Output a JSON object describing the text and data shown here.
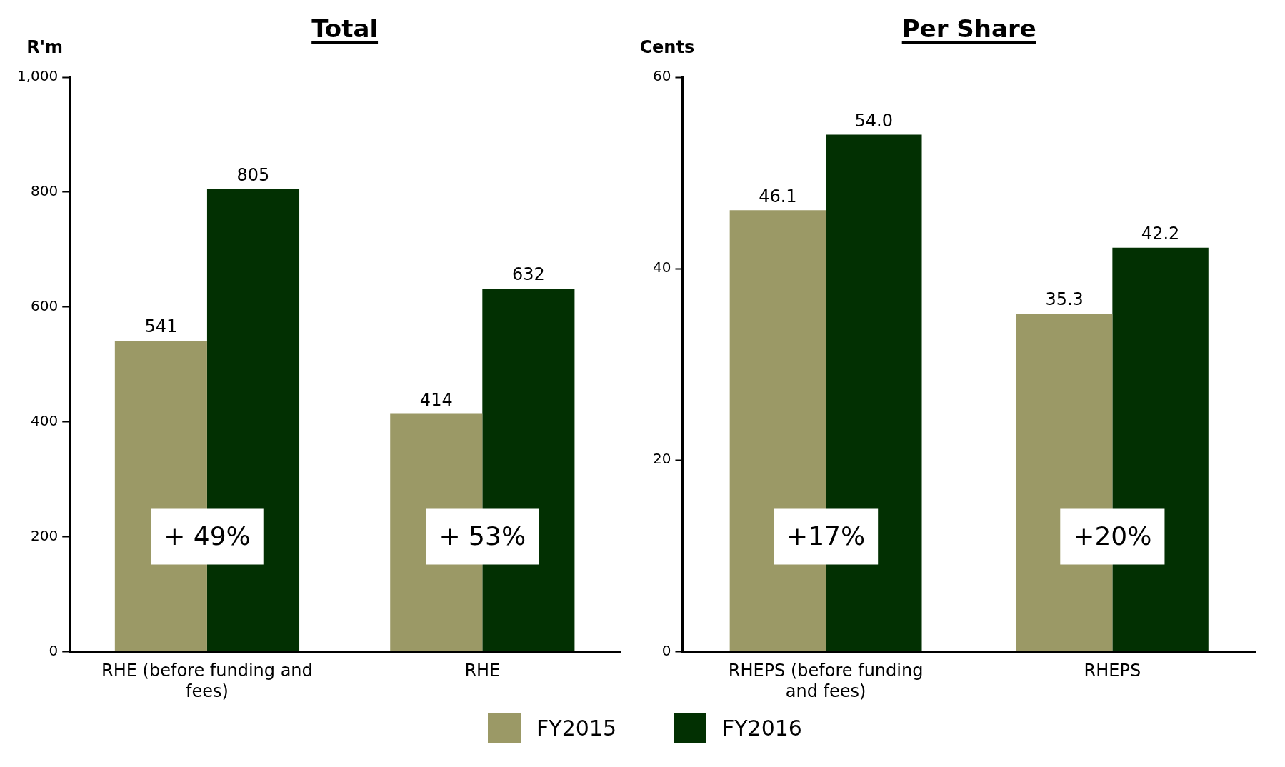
{
  "chart_data": [
    {
      "type": "bar",
      "title": "Total",
      "ylabel": "R'm",
      "categories": [
        "RHE (before funding and fees)",
        "RHE"
      ],
      "series": [
        {
          "name": "FY2015",
          "color": "#9b9966",
          "values": [
            541,
            414
          ]
        },
        {
          "name": "FY2016",
          "color": "#023002",
          "values": [
            805,
            632
          ]
        }
      ],
      "ylim": [
        0,
        1000
      ],
      "yticks": [
        0,
        200,
        400,
        600,
        800,
        {
          "value": 1000,
          "label": "1,000"
        }
      ],
      "grid": false,
      "data_labels": true,
      "legend": "bottom",
      "annotations": [
        {
          "text": "+ 49%",
          "x": "RHE (before funding and fees)",
          "y": 200
        },
        {
          "text": "+ 53%",
          "x": "RHE",
          "y": 200
        }
      ]
    },
    {
      "type": "bar",
      "title": "Per Share",
      "ylabel": "Cents",
      "categories": [
        "RHEPS (before funding and fees)",
        "RHEPS"
      ],
      "series": [
        {
          "color": "#9b9966",
          "values": [
            46.1,
            35.3
          ]
        },
        {
          "color": "#023002",
          "values": [
            54.0,
            42.2
          ]
        }
      ],
      "ylim": [
        0,
        60
      ],
      "yticks": [
        0,
        20,
        40,
        60
      ],
      "grid": false,
      "value_labels": [
        [
          "46.1",
          "35.3"
        ],
        [
          "54.0",
          "42.2"
        ]
      ],
      "annotations": [
        {
          "text": "+17%",
          "x": "RHEPS (before funding and fees)",
          "y": 12
        },
        {
          "text": "+20%",
          "x": "RHEPS",
          "y": 12
        }
      ]
    }
  ]
}
